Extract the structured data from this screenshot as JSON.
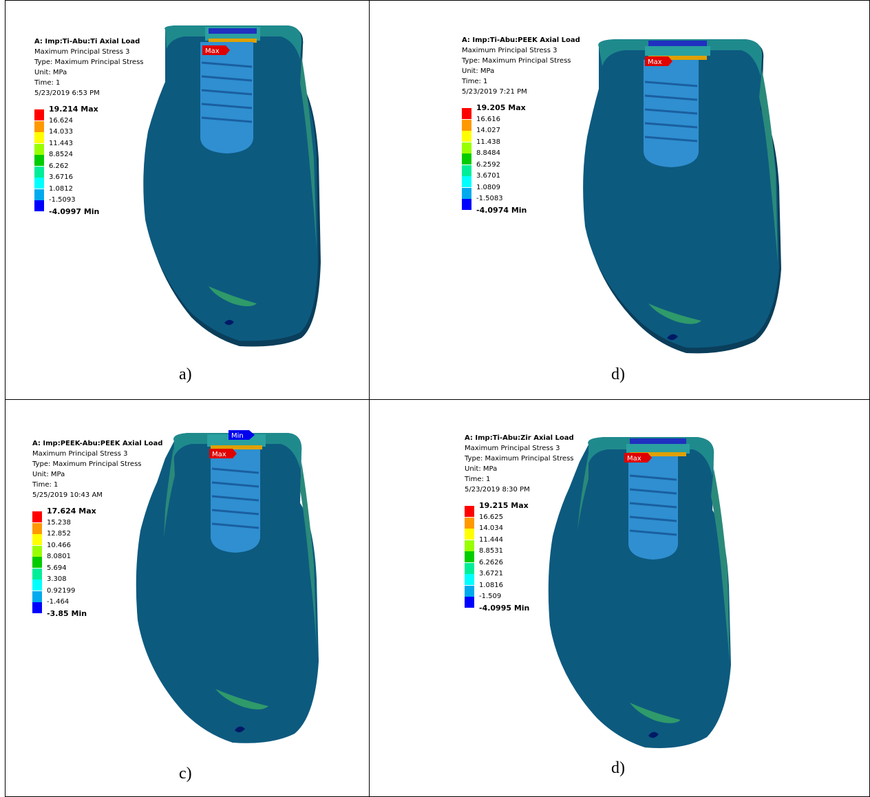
{
  "colors": {
    "legend": [
      "#ff0000",
      "#ff9900",
      "#ffff00",
      "#99ff00",
      "#00cc00",
      "#00ee99",
      "#00ffff",
      "#00aaee",
      "#0000ff"
    ],
    "body": "#0d5a7f",
    "edge": "#1f7a8c",
    "implant": "#2f8fd0"
  },
  "panels": [
    {
      "title": "A: Imp:Ti-Abu:Ti Axial Load",
      "result": "Maximum Principal Stress 3",
      "type": "Type: Maximum Principal Stress",
      "unit": "Unit: MPa",
      "time": "Time: 1",
      "date": "5/23/2019 6:53 PM",
      "scale": [
        "19.214 Max",
        "16.624",
        "14.033",
        "11.443",
        "8.8524",
        "6.262",
        "3.6716",
        "1.0812",
        "-1.5093",
        "-4.0997 Min"
      ],
      "max_tag": "Max",
      "caption": "a)"
    },
    {
      "title": "A: Imp:Ti-Abu:PEEK Axial Load",
      "result": "Maximum Principal Stress 3",
      "type": "Type: Maximum Principal Stress",
      "unit": "Unit: MPa",
      "time": "Time: 1",
      "date": "5/23/2019 7:21 PM",
      "scale": [
        "19.205 Max",
        "16.616",
        "14.027",
        "11.438",
        "8.8484",
        "6.2592",
        "3.6701",
        "1.0809",
        "-1.5083",
        "-4.0974 Min"
      ],
      "max_tag": "Max",
      "caption": "d)"
    },
    {
      "title": "A: Imp:PEEK-Abu:PEEK Axial Load",
      "result": "Maximum Principal Stress 3",
      "type": "Type: Maximum Principal Stress",
      "unit": "Unit: MPa",
      "time": "Time: 1",
      "date": "5/25/2019 10:43 AM",
      "scale": [
        "17.624 Max",
        "15.238",
        "12.852",
        "10.466",
        "8.0801",
        "5.694",
        "3.308",
        "0.92199",
        "-1.464",
        "-3.85 Min"
      ],
      "max_tag": "Max",
      "min_tag": "Min",
      "caption": "c)"
    },
    {
      "title": "A: Imp:Ti-Abu:Zir Axial Load",
      "result": "Maximum Principal Stress 3",
      "type": "Type: Maximum Principal Stress",
      "unit": "Unit: MPa",
      "time": "Time: 1",
      "date": "5/23/2019 8:30 PM",
      "scale": [
        "19.215 Max",
        "16.625",
        "14.034",
        "11.444",
        "8.8531",
        "6.2626",
        "3.6721",
        "1.0816",
        "-1.509",
        "-4.0995 Min"
      ],
      "max_tag": "Max",
      "caption": "d)"
    }
  ]
}
